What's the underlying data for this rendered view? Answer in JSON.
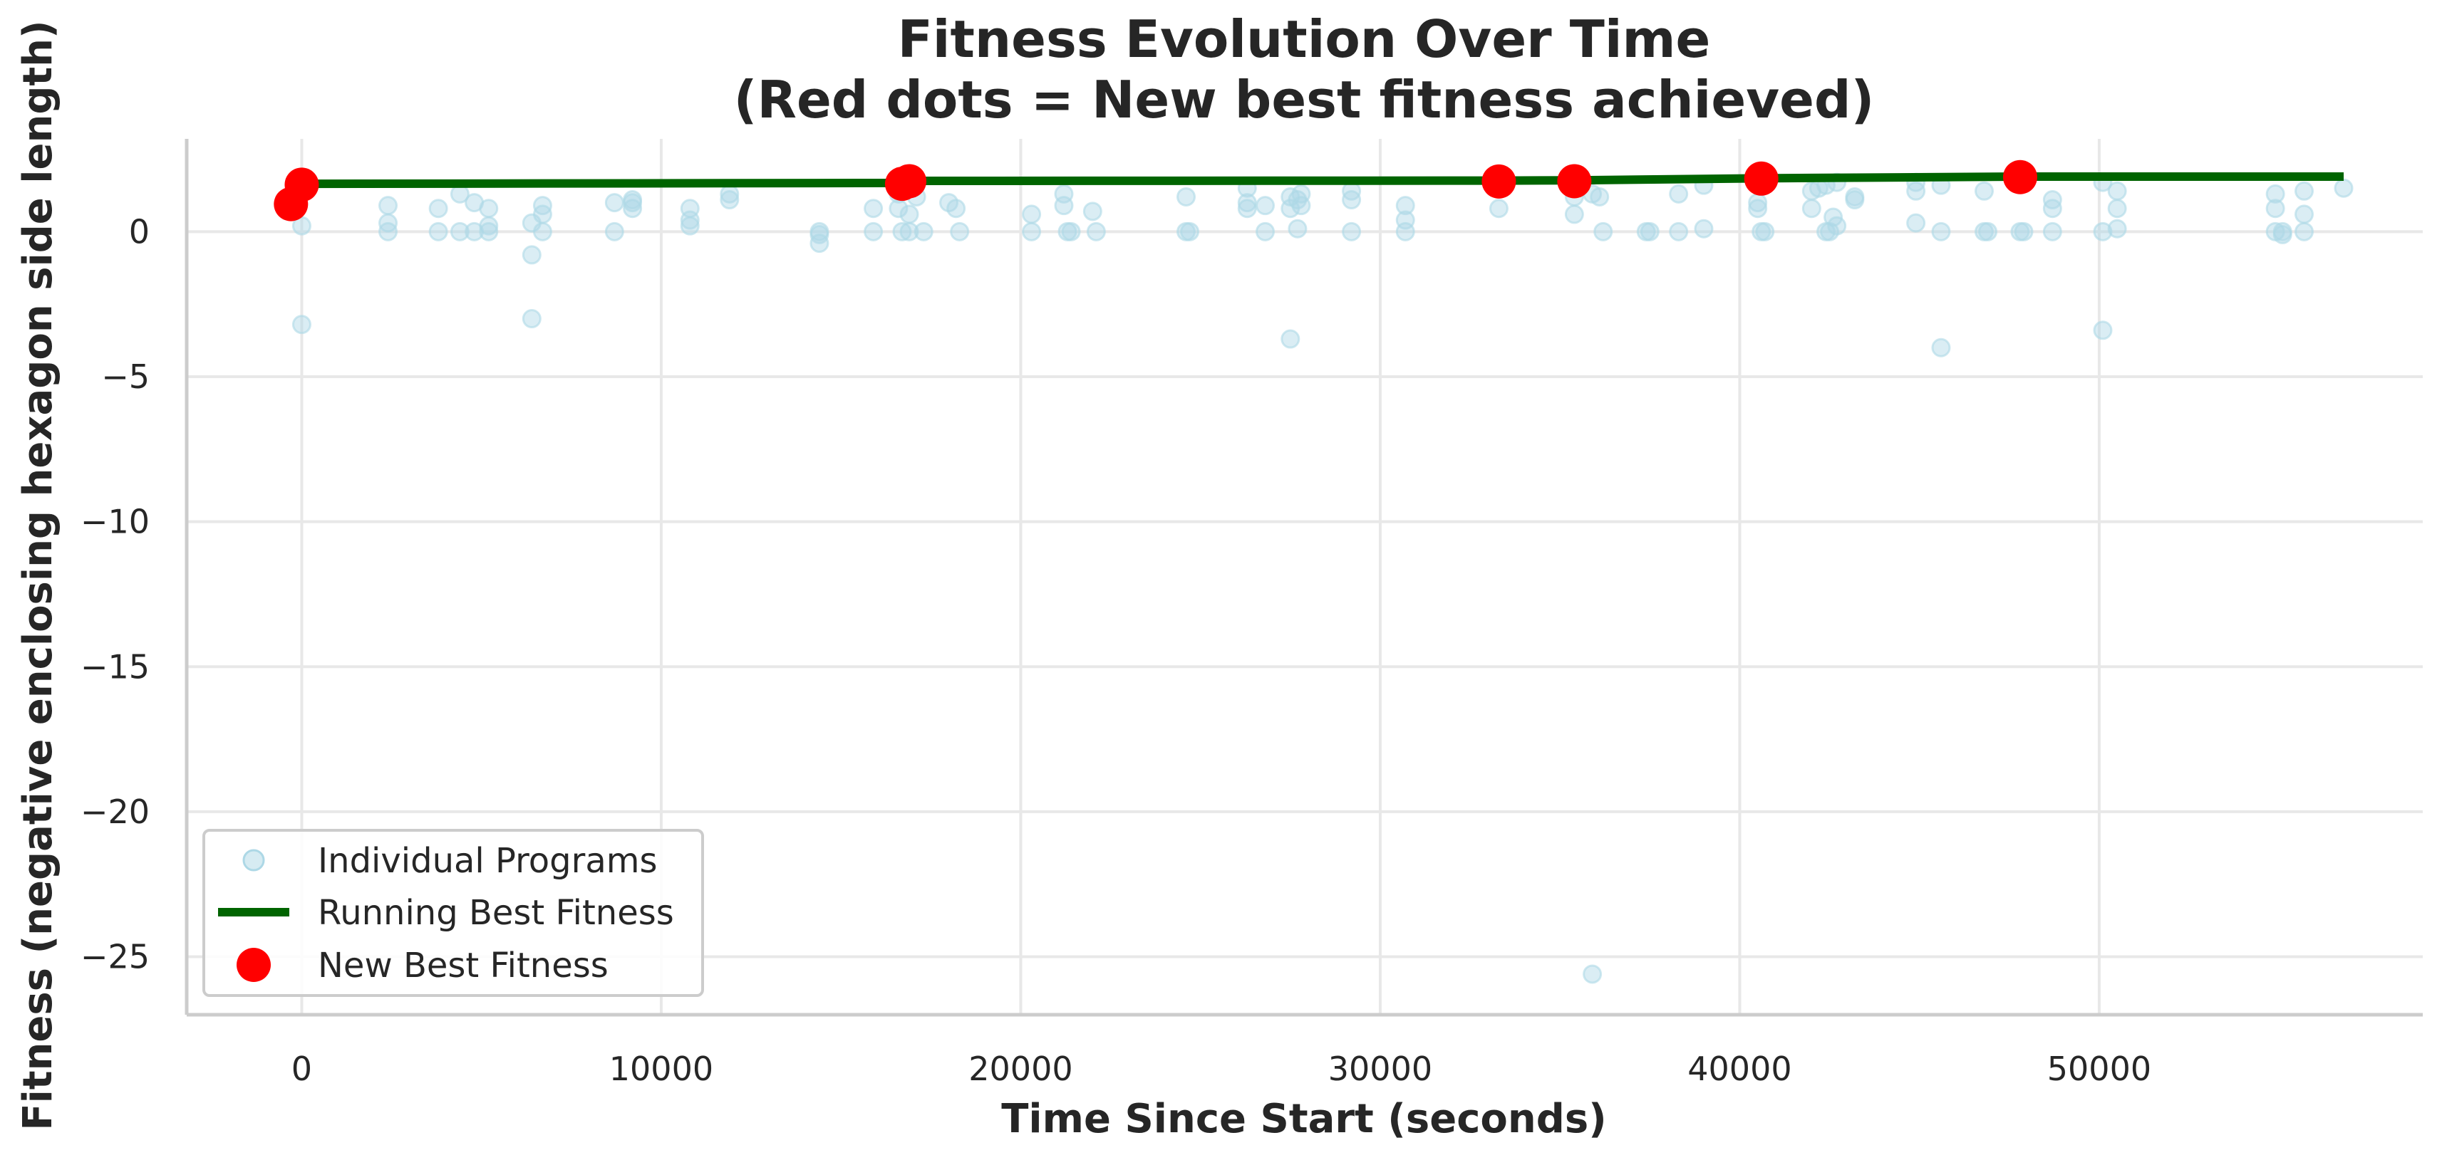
{
  "chart_data": {
    "type": "scatter",
    "title_line1": "Fitness Evolution Over Time",
    "title_line2": "(Red dots = New best fitness achieved)",
    "xlabel": "Time Since Start (seconds)",
    "ylabel": "Fitness (negative enclosing hexagon side length)",
    "xlim": [
      -3200,
      59000
    ],
    "ylim": [
      -27,
      3.2
    ],
    "x_ticks": [
      0,
      10000,
      20000,
      30000,
      40000,
      50000
    ],
    "x_tick_labels": [
      "0",
      "10000",
      "20000",
      "30000",
      "40000",
      "50000"
    ],
    "y_ticks": [
      0,
      -5,
      -10,
      -15,
      -20,
      -25
    ],
    "y_tick_labels": [
      "0",
      "−5",
      "−10",
      "−15",
      "−20",
      "−25"
    ],
    "grid": true,
    "legend_position": "lower-left",
    "colors": {
      "individual": "#add8e6",
      "running_best": "#006400",
      "new_best": "#ff0000",
      "grid": "#e8e8e8",
      "spine": "#cccccc"
    },
    "series": [
      {
        "name": "Individual Programs",
        "kind": "scatter",
        "points": [
          [
            0,
            0.2
          ],
          [
            0,
            -3.2
          ],
          [
            2400,
            0.9
          ],
          [
            2400,
            0.3
          ],
          [
            2400,
            0.0
          ],
          [
            3800,
            0.8
          ],
          [
            3800,
            0.0
          ],
          [
            4400,
            1.3
          ],
          [
            4400,
            0.0
          ],
          [
            4800,
            1.0
          ],
          [
            4800,
            0.0
          ],
          [
            5200,
            0.8
          ],
          [
            5200,
            0.2
          ],
          [
            5200,
            0.0
          ],
          [
            6400,
            0.3
          ],
          [
            6400,
            -0.8
          ],
          [
            6400,
            -3.0
          ],
          [
            6700,
            0.9
          ],
          [
            6700,
            0.6
          ],
          [
            6700,
            0.0
          ],
          [
            8700,
            1.0
          ],
          [
            8700,
            0.0
          ],
          [
            9200,
            1.1
          ],
          [
            9200,
            0.8
          ],
          [
            9200,
            1.0
          ],
          [
            10800,
            0.8
          ],
          [
            10800,
            0.4
          ],
          [
            10800,
            0.2
          ],
          [
            11900,
            1.3
          ],
          [
            11900,
            1.1
          ],
          [
            14400,
            0.0
          ],
          [
            14400,
            -0.1
          ],
          [
            14400,
            -0.4
          ],
          [
            15900,
            0.8
          ],
          [
            15900,
            0.0
          ],
          [
            16600,
            1.3
          ],
          [
            16600,
            0.8
          ],
          [
            16700,
            0.0
          ],
          [
            16900,
            0.6
          ],
          [
            16900,
            0.0
          ],
          [
            17100,
            1.2
          ],
          [
            17300,
            0.0
          ],
          [
            18000,
            1.0
          ],
          [
            18200,
            0.8
          ],
          [
            18300,
            0.0
          ],
          [
            20300,
            0.6
          ],
          [
            20300,
            0.0
          ],
          [
            21200,
            1.3
          ],
          [
            21200,
            0.9
          ],
          [
            21300,
            0.0
          ],
          [
            21400,
            0.0
          ],
          [
            22000,
            0.7
          ],
          [
            22100,
            0.0
          ],
          [
            24600,
            1.2
          ],
          [
            24600,
            0.0
          ],
          [
            24700,
            0.0
          ],
          [
            26300,
            1.5
          ],
          [
            26300,
            1.0
          ],
          [
            26300,
            0.8
          ],
          [
            26800,
            0.9
          ],
          [
            26800,
            0.0
          ],
          [
            27500,
            1.2
          ],
          [
            27500,
            0.8
          ],
          [
            27500,
            -3.7
          ],
          [
            27700,
            1.1
          ],
          [
            27700,
            0.1
          ],
          [
            27800,
            1.3
          ],
          [
            27800,
            0.9
          ],
          [
            29200,
            1.4
          ],
          [
            29200,
            1.1
          ],
          [
            29200,
            0.0
          ],
          [
            30700,
            0.9
          ],
          [
            30700,
            0.4
          ],
          [
            30700,
            0.0
          ],
          [
            33300,
            0.8
          ],
          [
            35400,
            1.2
          ],
          [
            35400,
            0.6
          ],
          [
            35900,
            1.3
          ],
          [
            35900,
            -25.6
          ],
          [
            36100,
            1.2
          ],
          [
            36200,
            0.0
          ],
          [
            37400,
            0.0
          ],
          [
            37500,
            0.0
          ],
          [
            38300,
            1.3
          ],
          [
            38300,
            0.0
          ],
          [
            39000,
            1.6
          ],
          [
            39000,
            0.1
          ],
          [
            40500,
            1.0
          ],
          [
            40500,
            0.8
          ],
          [
            40600,
            0.0
          ],
          [
            40700,
            0.0
          ],
          [
            42000,
            1.4
          ],
          [
            42000,
            0.8
          ],
          [
            42200,
            1.5
          ],
          [
            42400,
            1.6
          ],
          [
            42400,
            0.0
          ],
          [
            42500,
            0.0
          ],
          [
            42600,
            0.5
          ],
          [
            42700,
            1.7
          ],
          [
            42700,
            0.2
          ],
          [
            43200,
            1.2
          ],
          [
            43200,
            1.1
          ],
          [
            44900,
            1.7
          ],
          [
            44900,
            1.4
          ],
          [
            44900,
            0.3
          ],
          [
            45600,
            1.6
          ],
          [
            45600,
            0.0
          ],
          [
            45600,
            -4.0
          ],
          [
            46800,
            1.4
          ],
          [
            46800,
            0.0
          ],
          [
            46900,
            0.0
          ],
          [
            47800,
            0.0
          ],
          [
            47900,
            0.0
          ],
          [
            48700,
            1.1
          ],
          [
            48700,
            0.8
          ],
          [
            48700,
            0.0
          ],
          [
            50100,
            1.7
          ],
          [
            50100,
            -3.4
          ],
          [
            50100,
            0.0
          ],
          [
            50500,
            1.4
          ],
          [
            50500,
            0.8
          ],
          [
            50500,
            0.1
          ],
          [
            54900,
            1.3
          ],
          [
            54900,
            0.8
          ],
          [
            54900,
            0.0
          ],
          [
            55100,
            0.0
          ],
          [
            55100,
            -0.1
          ],
          [
            55700,
            1.4
          ],
          [
            55700,
            0.6
          ],
          [
            55700,
            0.0
          ],
          [
            56800,
            1.5
          ]
        ]
      },
      {
        "name": "Running Best Fitness",
        "kind": "line",
        "x": [
          0,
          16700,
          16900,
          33300,
          35400,
          40600,
          47800,
          56800
        ],
        "y": [
          1.65,
          1.68,
          1.75,
          1.76,
          1.77,
          1.84,
          1.9,
          1.9
        ]
      },
      {
        "name": "New Best Fitness",
        "kind": "scatter",
        "x": [
          -300,
          0,
          16700,
          16900,
          33300,
          35400,
          40600,
          47800
        ],
        "y": [
          0.95,
          1.62,
          1.65,
          1.74,
          1.73,
          1.74,
          1.83,
          1.88
        ]
      }
    ]
  }
}
